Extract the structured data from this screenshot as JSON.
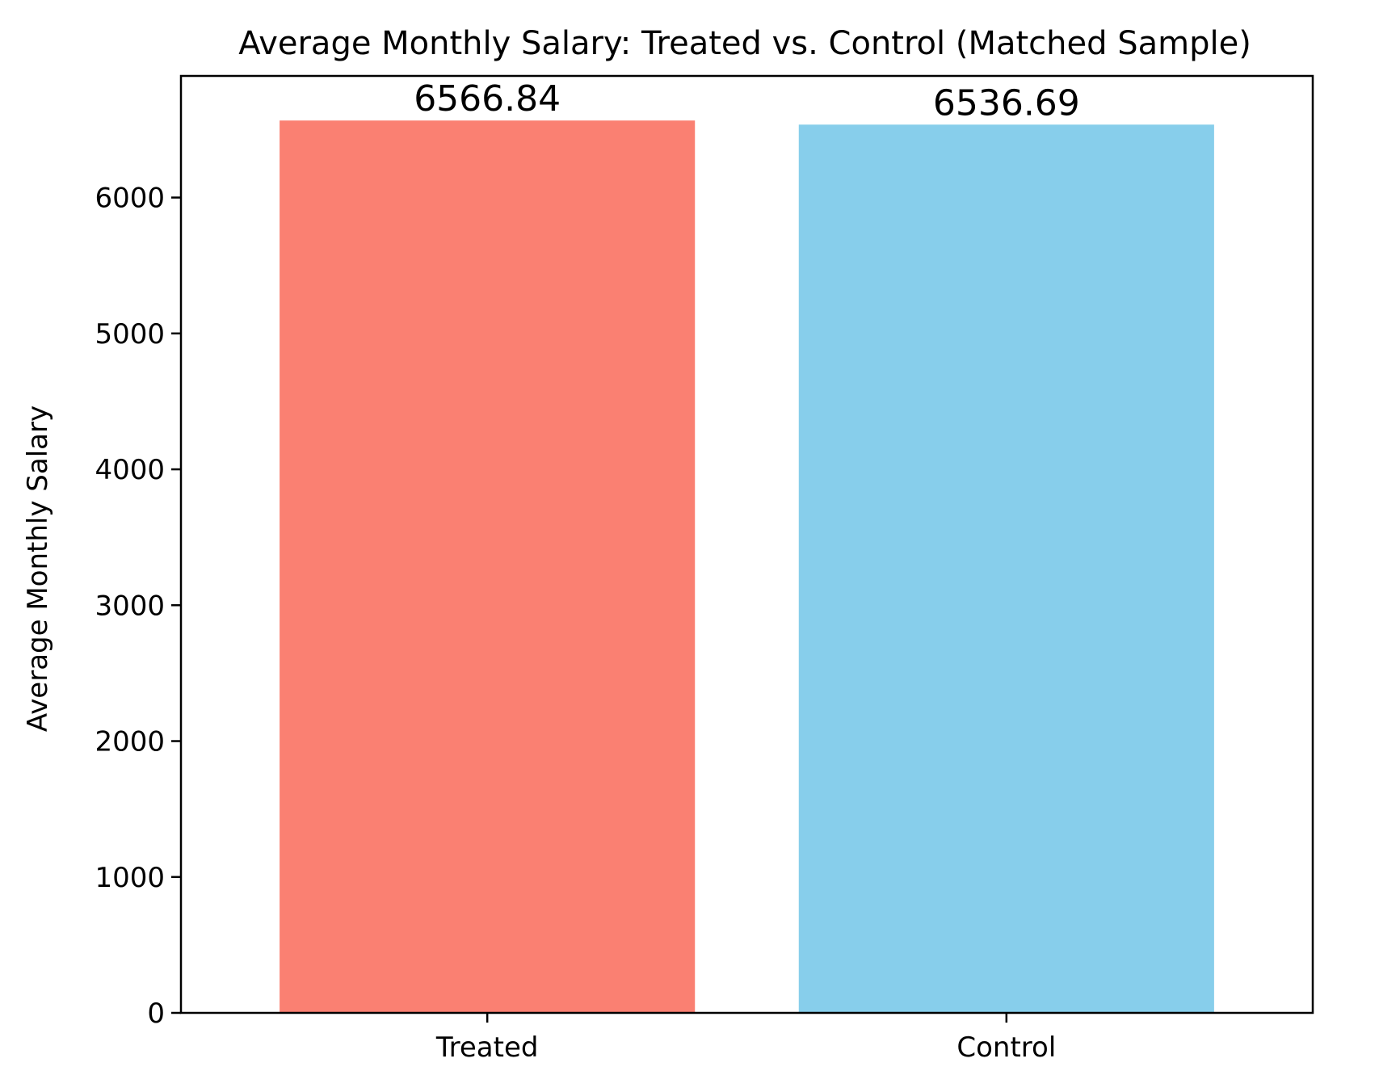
{
  "chart_data": {
    "type": "bar",
    "title": "Average Monthly Salary: Treated vs. Control (Matched Sample)",
    "xlabel": "",
    "ylabel": "Average Monthly Salary",
    "categories": [
      "Treated",
      "Control"
    ],
    "values": [
      6566.84,
      6536.69
    ],
    "value_labels": [
      "6566.84",
      "6536.69"
    ],
    "colors": [
      "#fa8072",
      "#87ceeb"
    ],
    "ylim": [
      0,
      6895
    ],
    "yticks": [
      0,
      1000,
      2000,
      3000,
      4000,
      5000,
      6000
    ],
    "ytick_labels": [
      "0",
      "1000",
      "2000",
      "3000",
      "4000",
      "5000",
      "6000"
    ],
    "grid": false,
    "legend": "none"
  }
}
